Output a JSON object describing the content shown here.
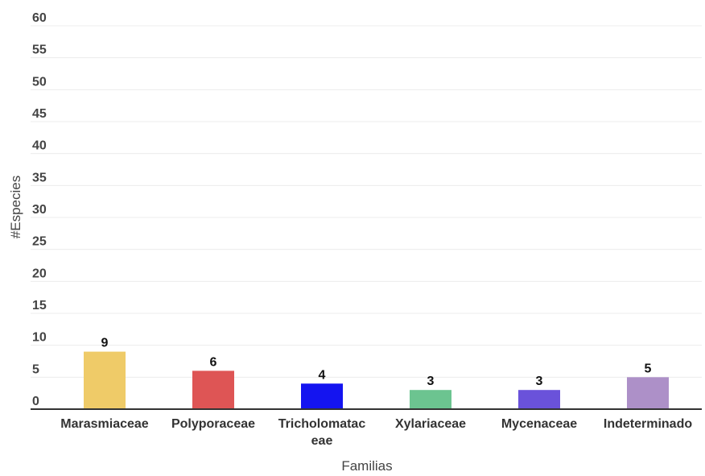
{
  "chart_data": {
    "type": "bar",
    "categories": [
      "Marasmiaceae",
      "Polyporaceae",
      "Tricholomataceae",
      "Xylariaceae",
      "Mycenaceae",
      "Indeterminado"
    ],
    "category_label_lines": [
      [
        "Marasmiaceae"
      ],
      [
        "Polyporaceae"
      ],
      [
        "Tricholomatac",
        "eae"
      ],
      [
        "Xylariaceae"
      ],
      [
        "Mycenaceae"
      ],
      [
        "Indeterminado"
      ]
    ],
    "values": [
      9,
      6,
      4,
      3,
      3,
      5
    ],
    "colors": [
      "#EFCB68",
      "#DE5555",
      "#1414F0",
      "#6CC490",
      "#6A52DA",
      "#AD90C8"
    ],
    "xlabel": "Familias",
    "ylabel": "#Especies",
    "ylim": [
      0,
      60
    ],
    "yticks": [
      0,
      5,
      10,
      15,
      20,
      25,
      30,
      35,
      40,
      45,
      50,
      55,
      60
    ],
    "grid": true,
    "data_labels": true
  }
}
